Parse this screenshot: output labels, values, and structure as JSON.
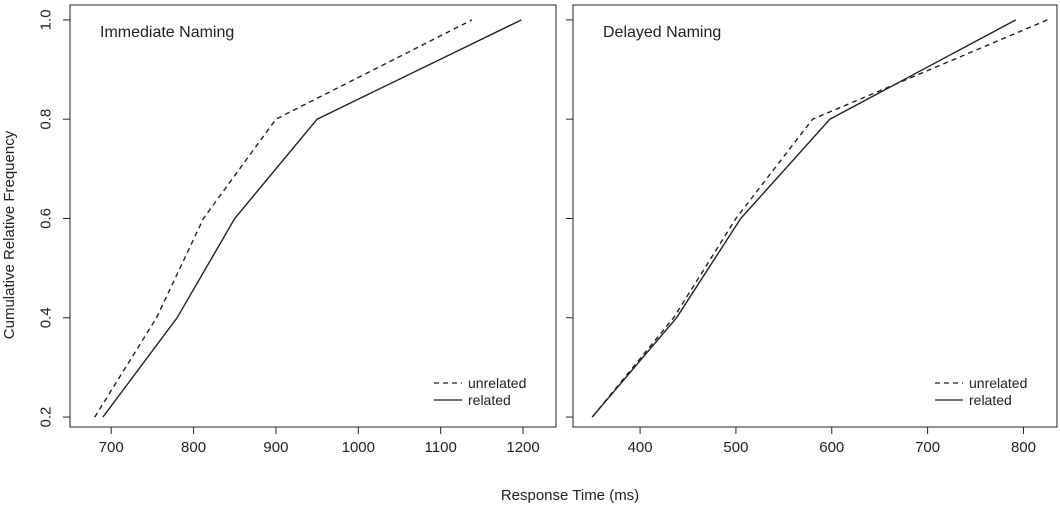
{
  "chart_data": {
    "type": "line",
    "xlabel": "Response Time (ms)",
    "ylabel": "Cumulative Relative Frequency",
    "panels": [
      {
        "title": "Immediate Naming",
        "xlim": [
          650,
          1240
        ],
        "ylim": [
          0.18,
          1.03
        ],
        "xticks": [
          "700",
          "800",
          "900",
          "1000",
          "1100",
          "1200"
        ],
        "yticks": [
          "0.2",
          "0.4",
          "0.6",
          "0.8",
          "1.0"
        ],
        "legend": {
          "position": "bottom-right",
          "entries": [
            "unrelated",
            "related"
          ]
        },
        "series": [
          {
            "name": "unrelated",
            "style": "dashed",
            "color": "#222222",
            "x": [
              680,
              755,
              812,
              900,
              1138
            ],
            "y": [
              0.2,
              0.4,
              0.6,
              0.8,
              1.0
            ]
          },
          {
            "name": "related",
            "style": "solid",
            "color": "#222222",
            "x": [
              690,
              780,
              850,
              950,
              1198
            ],
            "y": [
              0.2,
              0.4,
              0.6,
              0.8,
              1.0
            ]
          }
        ]
      },
      {
        "title": "Delayed Naming",
        "xlim": [
          330,
          835
        ],
        "ylim": [
          0.18,
          1.03
        ],
        "xticks": [
          "400",
          "500",
          "600",
          "700",
          "800"
        ],
        "yticks": [
          "0.2",
          "0.4",
          "0.6",
          "0.8",
          "1.0"
        ],
        "legend": {
          "position": "bottom-right",
          "entries": [
            "unrelated",
            "related"
          ]
        },
        "series": [
          {
            "name": "unrelated",
            "style": "dashed",
            "color": "#222222",
            "x": [
              350,
              435,
              500,
              580,
              825
            ],
            "y": [
              0.2,
              0.4,
              0.6,
              0.8,
              1.0
            ]
          },
          {
            "name": "related",
            "style": "solid",
            "color": "#222222",
            "x": [
              350,
              438,
              505,
              598,
              792
            ],
            "y": [
              0.2,
              0.4,
              0.6,
              0.8,
              1.0
            ]
          }
        ]
      }
    ]
  }
}
